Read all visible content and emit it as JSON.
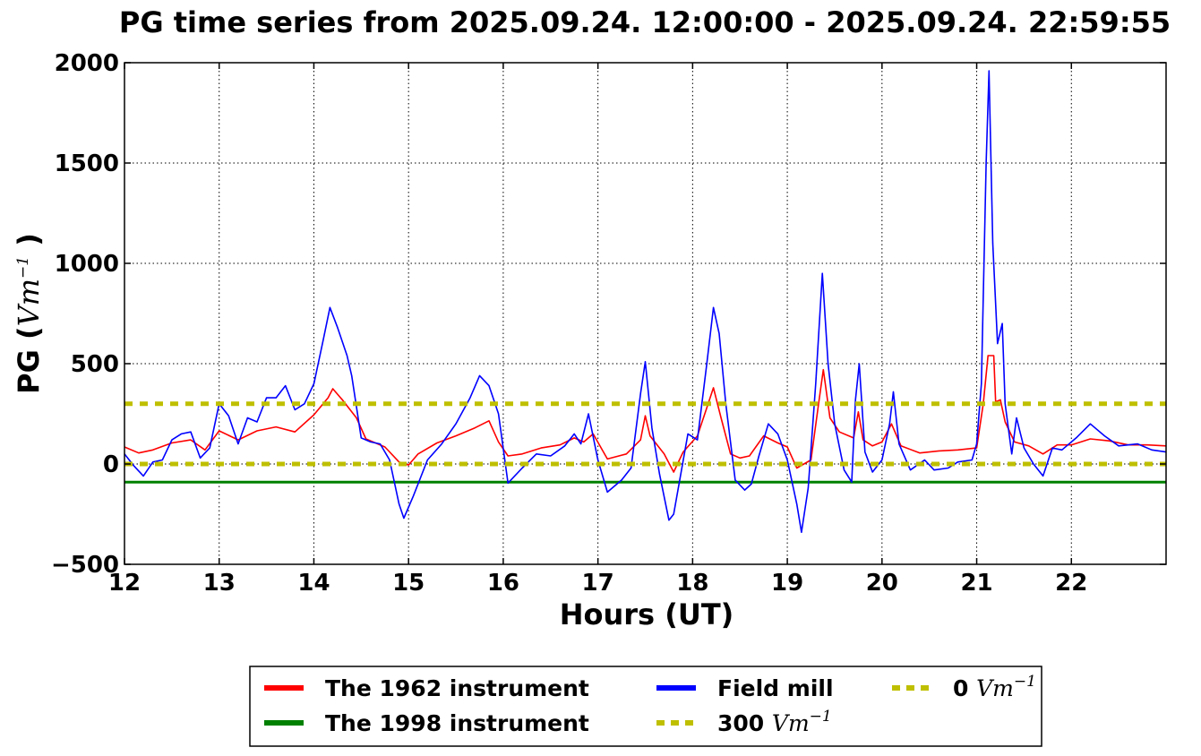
{
  "chart_data": {
    "type": "line",
    "title": "PG time series from 2025.09.24. 12:00:00 - 2025.09.24. 22:59:55",
    "xlabel": "Hours (UT)",
    "ylabel_prefix": "PG (",
    "ylabel_unit": "Vm",
    "ylabel_exp": "−1",
    "ylabel_suffix": " )",
    "xlim": [
      12,
      23
    ],
    "ylim": [
      -500,
      2000
    ],
    "x_ticks": [
      12,
      13,
      14,
      15,
      16,
      17,
      18,
      19,
      20,
      21,
      22
    ],
    "x_tick_labels": [
      "12",
      "13",
      "14",
      "15",
      "16",
      "17",
      "18",
      "19",
      "20",
      "21",
      "22"
    ],
    "y_ticks": [
      -500,
      0,
      500,
      1000,
      1500,
      2000
    ],
    "y_tick_labels": [
      "−500",
      "0",
      "500",
      "1000",
      "1500",
      "2000"
    ],
    "grid": true,
    "legend_position": "bottom-center",
    "series": [
      {
        "name": "The 1962 instrument",
        "color": "#ff0000",
        "style": "solid",
        "points": [
          [
            12.0,
            85
          ],
          [
            12.15,
            55
          ],
          [
            12.3,
            70
          ],
          [
            12.5,
            105
          ],
          [
            12.7,
            120
          ],
          [
            12.85,
            70
          ],
          [
            13.0,
            165
          ],
          [
            13.2,
            120
          ],
          [
            13.4,
            165
          ],
          [
            13.6,
            185
          ],
          [
            13.8,
            160
          ],
          [
            14.0,
            245
          ],
          [
            14.15,
            330
          ],
          [
            14.2,
            375
          ],
          [
            14.3,
            320
          ],
          [
            14.45,
            230
          ],
          [
            14.55,
            125
          ],
          [
            14.75,
            85
          ],
          [
            14.9,
            10
          ],
          [
            15.0,
            -5
          ],
          [
            15.1,
            50
          ],
          [
            15.3,
            105
          ],
          [
            15.5,
            140
          ],
          [
            15.7,
            180
          ],
          [
            15.85,
            215
          ],
          [
            15.95,
            110
          ],
          [
            16.05,
            40
          ],
          [
            16.2,
            50
          ],
          [
            16.4,
            80
          ],
          [
            16.6,
            95
          ],
          [
            16.75,
            130
          ],
          [
            16.85,
            110
          ],
          [
            16.95,
            150
          ],
          [
            17.1,
            25
          ],
          [
            17.3,
            50
          ],
          [
            17.45,
            120
          ],
          [
            17.5,
            240
          ],
          [
            17.55,
            140
          ],
          [
            17.7,
            50
          ],
          [
            17.8,
            -40
          ],
          [
            17.9,
            60
          ],
          [
            18.05,
            140
          ],
          [
            18.15,
            280
          ],
          [
            18.22,
            380
          ],
          [
            18.3,
            230
          ],
          [
            18.4,
            50
          ],
          [
            18.5,
            30
          ],
          [
            18.6,
            40
          ],
          [
            18.75,
            140
          ],
          [
            18.9,
            105
          ],
          [
            19.0,
            85
          ],
          [
            19.1,
            -20
          ],
          [
            19.25,
            20
          ],
          [
            19.33,
            300
          ],
          [
            19.38,
            470
          ],
          [
            19.45,
            230
          ],
          [
            19.55,
            160
          ],
          [
            19.7,
            130
          ],
          [
            19.75,
            260
          ],
          [
            19.8,
            120
          ],
          [
            19.9,
            90
          ],
          [
            20.0,
            110
          ],
          [
            20.1,
            200
          ],
          [
            20.2,
            90
          ],
          [
            20.4,
            55
          ],
          [
            20.6,
            65
          ],
          [
            20.8,
            70
          ],
          [
            21.0,
            80
          ],
          [
            21.07,
            300
          ],
          [
            21.12,
            540
          ],
          [
            21.18,
            540
          ],
          [
            21.2,
            310
          ],
          [
            21.25,
            320
          ],
          [
            21.3,
            210
          ],
          [
            21.4,
            110
          ],
          [
            21.55,
            90
          ],
          [
            21.7,
            50
          ],
          [
            21.85,
            95
          ],
          [
            22.0,
            95
          ],
          [
            22.2,
            125
          ],
          [
            22.4,
            115
          ],
          [
            22.6,
            95
          ],
          [
            22.8,
            95
          ],
          [
            23.0,
            90
          ]
        ]
      },
      {
        "name": "The 1998 instrument",
        "color": "#008000",
        "style": "solid",
        "points": [
          [
            12.0,
            -90
          ],
          [
            23.0,
            -90
          ]
        ]
      },
      {
        "name": "Field mill",
        "color": "#0000ff",
        "style": "solid",
        "points": [
          [
            12.0,
            50
          ],
          [
            12.1,
            -10
          ],
          [
            12.2,
            -60
          ],
          [
            12.3,
            10
          ],
          [
            12.4,
            20
          ],
          [
            12.5,
            120
          ],
          [
            12.6,
            150
          ],
          [
            12.7,
            160
          ],
          [
            12.8,
            30
          ],
          [
            12.9,
            80
          ],
          [
            13.0,
            300
          ],
          [
            13.1,
            240
          ],
          [
            13.2,
            100
          ],
          [
            13.3,
            230
          ],
          [
            13.4,
            210
          ],
          [
            13.5,
            330
          ],
          [
            13.6,
            330
          ],
          [
            13.7,
            390
          ],
          [
            13.8,
            270
          ],
          [
            13.9,
            300
          ],
          [
            14.0,
            400
          ],
          [
            14.1,
            620
          ],
          [
            14.17,
            780
          ],
          [
            14.25,
            680
          ],
          [
            14.35,
            540
          ],
          [
            14.4,
            440
          ],
          [
            14.5,
            130
          ],
          [
            14.6,
            110
          ],
          [
            14.7,
            100
          ],
          [
            14.8,
            20
          ],
          [
            14.9,
            -200
          ],
          [
            14.95,
            -270
          ],
          [
            15.05,
            -160
          ],
          [
            15.2,
            20
          ],
          [
            15.35,
            100
          ],
          [
            15.5,
            200
          ],
          [
            15.65,
            330
          ],
          [
            15.75,
            440
          ],
          [
            15.85,
            390
          ],
          [
            15.95,
            250
          ],
          [
            16.05,
            -95
          ],
          [
            16.2,
            -20
          ],
          [
            16.35,
            50
          ],
          [
            16.5,
            40
          ],
          [
            16.65,
            90
          ],
          [
            16.75,
            150
          ],
          [
            16.82,
            100
          ],
          [
            16.9,
            250
          ],
          [
            17.0,
            20
          ],
          [
            17.1,
            -140
          ],
          [
            17.25,
            -80
          ],
          [
            17.35,
            -20
          ],
          [
            17.45,
            350
          ],
          [
            17.5,
            510
          ],
          [
            17.57,
            180
          ],
          [
            17.65,
            -50
          ],
          [
            17.75,
            -280
          ],
          [
            17.8,
            -250
          ],
          [
            17.95,
            150
          ],
          [
            18.05,
            120
          ],
          [
            18.15,
            500
          ],
          [
            18.22,
            780
          ],
          [
            18.28,
            650
          ],
          [
            18.35,
            300
          ],
          [
            18.45,
            -80
          ],
          [
            18.55,
            -130
          ],
          [
            18.62,
            -100
          ],
          [
            18.7,
            40
          ],
          [
            18.8,
            200
          ],
          [
            18.9,
            150
          ],
          [
            19.0,
            20
          ],
          [
            19.1,
            -200
          ],
          [
            19.15,
            -340
          ],
          [
            19.22,
            -120
          ],
          [
            19.3,
            400
          ],
          [
            19.37,
            950
          ],
          [
            19.43,
            500
          ],
          [
            19.5,
            200
          ],
          [
            19.6,
            -30
          ],
          [
            19.68,
            -90
          ],
          [
            19.72,
            320
          ],
          [
            19.76,
            500
          ],
          [
            19.82,
            60
          ],
          [
            19.9,
            -40
          ],
          [
            20.0,
            20
          ],
          [
            20.08,
            200
          ],
          [
            20.12,
            360
          ],
          [
            20.18,
            100
          ],
          [
            20.3,
            -30
          ],
          [
            20.45,
            20
          ],
          [
            20.55,
            -30
          ],
          [
            20.7,
            -20
          ],
          [
            20.8,
            10
          ],
          [
            20.95,
            20
          ],
          [
            21.0,
            100
          ],
          [
            21.05,
            400
          ],
          [
            21.1,
            1500
          ],
          [
            21.13,
            1960
          ],
          [
            21.17,
            1100
          ],
          [
            21.22,
            600
          ],
          [
            21.27,
            700
          ],
          [
            21.3,
            300
          ],
          [
            21.37,
            50
          ],
          [
            21.42,
            230
          ],
          [
            21.5,
            80
          ],
          [
            21.6,
            0
          ],
          [
            21.7,
            -60
          ],
          [
            21.8,
            80
          ],
          [
            21.9,
            70
          ],
          [
            22.05,
            130
          ],
          [
            22.2,
            200
          ],
          [
            22.35,
            140
          ],
          [
            22.5,
            90
          ],
          [
            22.7,
            100
          ],
          [
            22.85,
            70
          ],
          [
            23.0,
            60
          ]
        ]
      },
      {
        "name": "300",
        "color": "#bfbf00",
        "style": "dashed",
        "points": [
          [
            12.0,
            300
          ],
          [
            23.0,
            300
          ]
        ]
      },
      {
        "name": "0",
        "color": "#bfbf00",
        "style": "dashed",
        "points": [
          [
            12.0,
            0
          ],
          [
            23.0,
            0
          ]
        ]
      }
    ],
    "legend": [
      {
        "label": "The 1962 instrument",
        "unit": "",
        "exp": "",
        "color": "#ff0000",
        "style": "solid"
      },
      {
        "label": "The 1998 instrument",
        "unit": "",
        "exp": "",
        "color": "#008000",
        "style": "solid"
      },
      {
        "label": "Field mill",
        "unit": "",
        "exp": "",
        "color": "#0000ff",
        "style": "solid"
      },
      {
        "label": "300 ",
        "unit": "Vm",
        "exp": "−1",
        "color": "#bfbf00",
        "style": "dashed"
      },
      {
        "label": "0 ",
        "unit": "Vm",
        "exp": "−1",
        "color": "#bfbf00",
        "style": "dashed"
      }
    ]
  }
}
